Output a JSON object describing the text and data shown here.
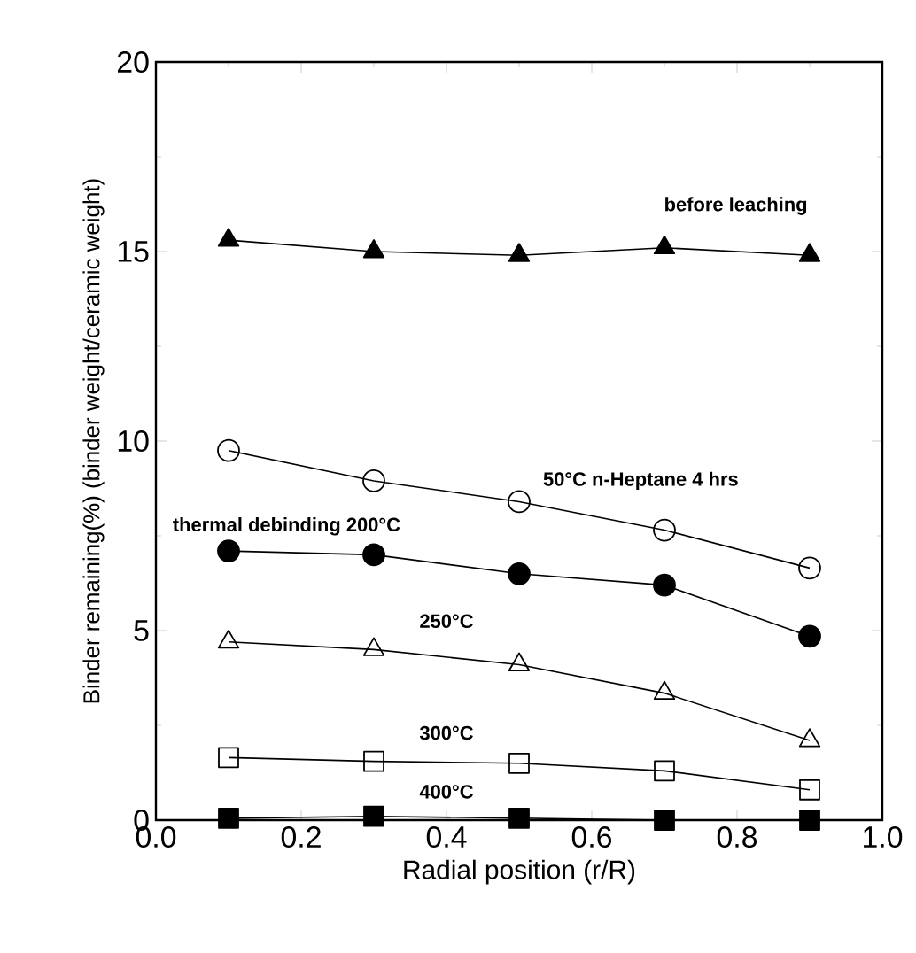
{
  "chart_data": {
    "type": "line",
    "xlabel": "Radial position (r/R)",
    "ylabel": "Binder remaining(%) (binder weight/ceramic weight)",
    "x": [
      0.1,
      0.3,
      0.5,
      0.7,
      0.9
    ],
    "xlim": [
      0.0,
      1.0
    ],
    "xticks": [
      {
        "value": 0.0,
        "label": "0.0"
      },
      0.2,
      0.4,
      0.6,
      0.8,
      {
        "value": 1.0,
        "label": "1.0"
      }
    ],
    "ylim": [
      0,
      20
    ],
    "yticks": [
      0,
      5,
      10,
      15,
      20
    ],
    "grid": false,
    "legend": false,
    "line_style": "solid",
    "series": [
      {
        "name": "before leaching",
        "color": "#000000",
        "marker": "triangle",
        "values": [
          15.3,
          15.0,
          14.9,
          15.1,
          14.9
        ]
      },
      {
        "name": "50°C n-Heptane 4 hrs",
        "color": "#000000",
        "marker": "circle",
        "values": [
          9.75,
          8.95,
          8.4,
          7.65,
          6.65
        ]
      },
      {
        "name": "thermal debinding 200°C",
        "color": "#000000",
        "marker": "circle",
        "values": [
          7.1,
          7.0,
          6.5,
          6.2,
          4.85
        ]
      },
      {
        "name": "250°C",
        "color": "#000000",
        "marker": "triangle",
        "values": [
          4.7,
          4.5,
          4.1,
          3.35,
          2.1
        ]
      },
      {
        "name": "300°C",
        "color": "#000000",
        "marker": "square",
        "values": [
          1.65,
          1.55,
          1.5,
          1.3,
          0.8
        ]
      },
      {
        "name": "400°C",
        "color": "#000000",
        "marker": "square",
        "values": [
          0.05,
          0.1,
          0.05,
          0.0,
          0.0
        ]
      }
    ]
  }
}
